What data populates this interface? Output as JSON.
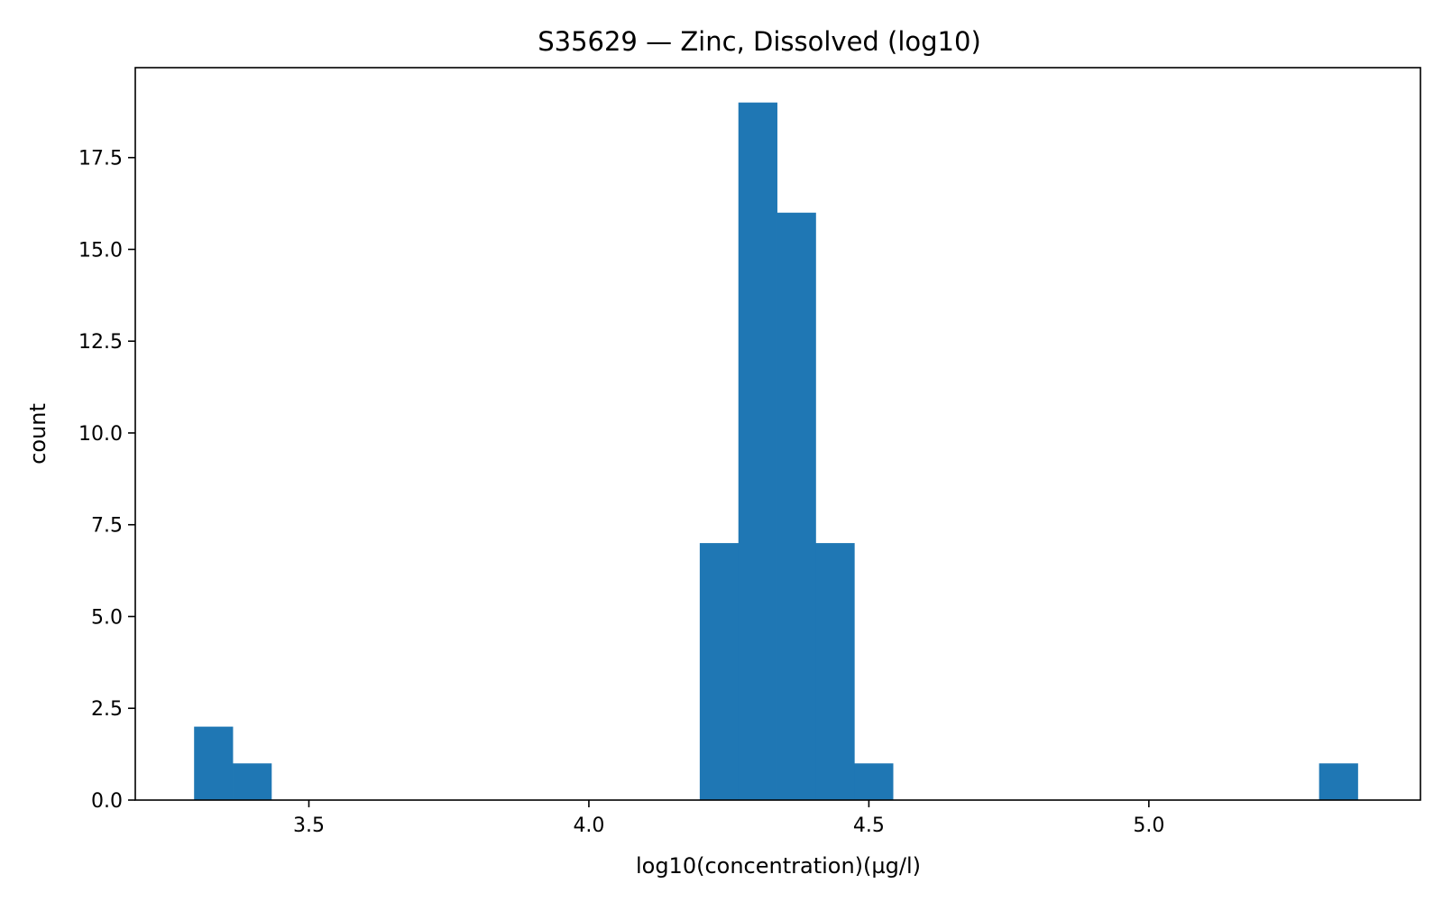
{
  "chart_data": {
    "type": "bar",
    "title": "S35629 — Zinc, Dissolved (log10)",
    "xlabel": "log10(concentration)(µg/l)",
    "ylabel": "count",
    "xlim": [
      3.19,
      5.485
    ],
    "ylim": [
      0,
      19.95
    ],
    "bin_width": 0.069,
    "bins": [
      {
        "x0": 3.295,
        "count": 2
      },
      {
        "x0": 3.364,
        "count": 1
      },
      {
        "x0": 4.198,
        "count": 7
      },
      {
        "x0": 4.267,
        "count": 19
      },
      {
        "x0": 4.336,
        "count": 16
      },
      {
        "x0": 4.405,
        "count": 7
      },
      {
        "x0": 4.474,
        "count": 1
      },
      {
        "x0": 5.304,
        "count": 1
      }
    ],
    "x_ticks": [
      {
        "value": 3.5,
        "label": "3.5"
      },
      {
        "value": 4.0,
        "label": "4.0"
      },
      {
        "value": 4.5,
        "label": "4.5"
      },
      {
        "value": 5.0,
        "label": "5.0"
      }
    ],
    "y_ticks": [
      {
        "value": 0.0,
        "label": "0.0"
      },
      {
        "value": 2.5,
        "label": "2.5"
      },
      {
        "value": 5.0,
        "label": "5.0"
      },
      {
        "value": 7.5,
        "label": "7.5"
      },
      {
        "value": 10.0,
        "label": "10.0"
      },
      {
        "value": 12.5,
        "label": "12.5"
      },
      {
        "value": 15.0,
        "label": "15.0"
      },
      {
        "value": 17.5,
        "label": "17.5"
      }
    ],
    "bar_color": "#1f77b4",
    "grid": false,
    "legend": "none"
  }
}
